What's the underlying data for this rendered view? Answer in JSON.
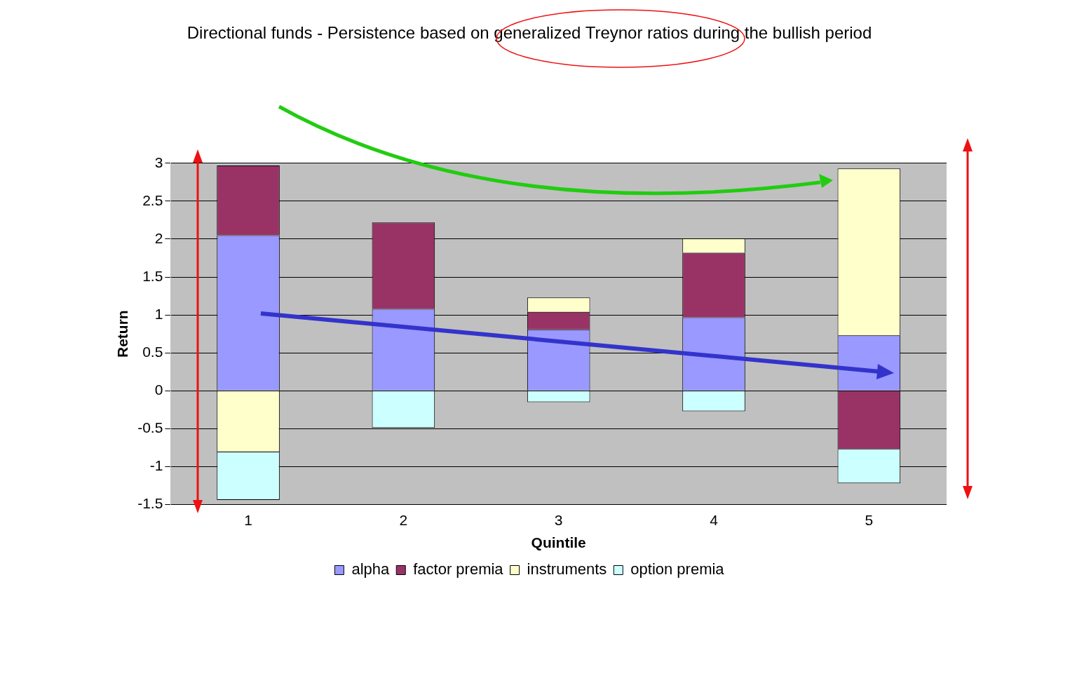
{
  "chart_data": {
    "type": "bar",
    "title": "Directional funds - Persistence based on generalized Treynor ratios during the bullish period",
    "xlabel": "Quintile",
    "ylabel": "Return",
    "categories": [
      "1",
      "2",
      "3",
      "4",
      "5"
    ],
    "stacked": true,
    "series": [
      {
        "name": "alpha",
        "color": "#9999ff",
        "values": [
          2.05,
          1.08,
          0.81,
          0.97,
          0.73
        ]
      },
      {
        "name": "factor premia",
        "color": "#993366",
        "values": [
          0.92,
          1.14,
          0.23,
          0.85,
          -0.77
        ]
      },
      {
        "name": "instruments",
        "color": "#ffffcc",
        "values": [
          -0.81,
          null,
          0.19,
          0.19,
          2.2
        ]
      },
      {
        "name": "option premia",
        "color": "#ccffff",
        "values": [
          -0.63,
          -0.49,
          -0.15,
          -0.27,
          -0.45
        ]
      }
    ],
    "ylim": [
      -1.5,
      3
    ],
    "yticks": [
      -1.5,
      -1,
      -0.5,
      0,
      0.5,
      1,
      1.5,
      2,
      2.5,
      3
    ],
    "grid": "y",
    "legend": "bottom"
  }
}
